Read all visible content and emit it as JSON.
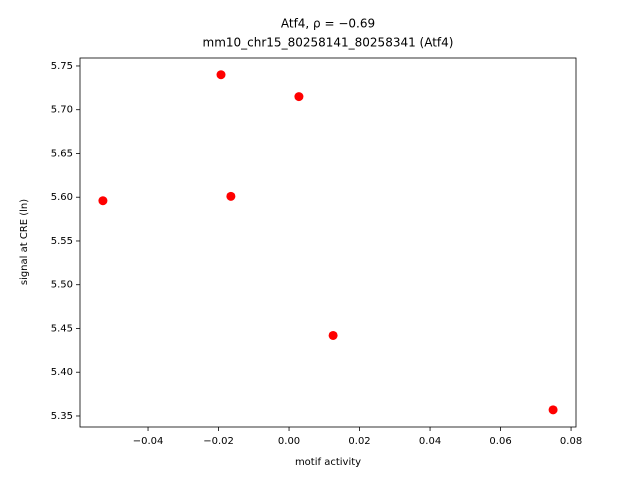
{
  "chart_data": {
    "type": "scatter",
    "title": "Atf4, ρ = −0.69",
    "subtitle": "mm10_chr15_80258141_80258341 (Atf4)",
    "x_label": "motif activity",
    "y_label": "signal at CRE (ln)",
    "color": "#ff0000",
    "x": [
      -0.0528,
      -0.0193,
      0.0028,
      -0.0165,
      0.0125,
      0.0749
    ],
    "values": [
      5.596,
      5.74,
      5.715,
      5.601,
      5.442,
      5.357
    ],
    "xlim": [
      -0.0593,
      0.0814
    ],
    "ylim": [
      5.3374,
      5.7591
    ],
    "xticks": [
      {
        "value": -0.04,
        "label": "−0.04"
      },
      {
        "value": -0.02,
        "label": "−0.02"
      },
      {
        "value": 0,
        "label": "0.00"
      },
      0.02,
      0.04,
      0.06,
      0.08
    ],
    "yticks": [
      5.35,
      {
        "value": 5.4,
        "label": "5.40"
      },
      5.45,
      {
        "value": 5.5,
        "label": "5.50"
      },
      5.55,
      {
        "value": 5.6,
        "label": "5.60"
      },
      5.65,
      {
        "value": 5.7,
        "label": "5.70"
      },
      5.75
    ],
    "grid": false
  }
}
